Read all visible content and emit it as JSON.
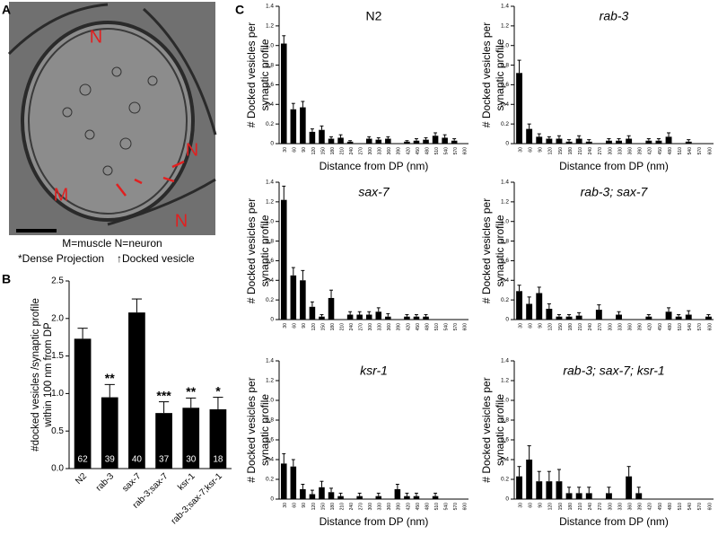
{
  "panel_a": {
    "label": "A",
    "regions": [
      "N",
      "N",
      "M",
      "N"
    ],
    "legend": [
      "M=muscle N=neuron",
      "*Dense Projection",
      "↑Docked vesicle"
    ]
  },
  "chart_data": [
    {
      "type": "bar",
      "panel_label": "B",
      "ylabel": [
        "#docked vesicles /synaptic profile",
        "within 100 nm from DP"
      ],
      "categories": [
        "N2",
        "rab-3",
        "sax-7",
        "rab-3;sax-7",
        "ksr-1",
        "rab-3;sax-7;ksr-1"
      ],
      "values": [
        1.73,
        0.95,
        2.08,
        0.74,
        0.81,
        0.79
      ],
      "errors": [
        0.14,
        0.17,
        0.18,
        0.15,
        0.13,
        0.16
      ],
      "n": [
        62,
        39,
        40,
        37,
        30,
        18
      ],
      "significance": [
        null,
        "**",
        null,
        "***",
        "**",
        "*"
      ],
      "color": "#000000",
      "ylim": [
        0,
        2.5
      ],
      "yticks": [
        {
          "value": 0,
          "label": "0.0"
        },
        0.5,
        {
          "value": 1,
          "label": "1.0"
        },
        1.5,
        {
          "value": 2,
          "label": "2.0"
        },
        2.5
      ]
    },
    {
      "type": "bar",
      "panel_label": "C",
      "title": "N2",
      "italic": false,
      "ylabel": [
        "# Docked vesicles per",
        "synaptic profile"
      ],
      "xlabel": "Distance from DP (nm)",
      "categories": [
        "30",
        "60",
        "90",
        "120",
        "150",
        "180",
        "210",
        "240",
        "270",
        "300",
        "330",
        "360",
        "390",
        "420",
        "450",
        "480",
        "510",
        "540",
        "570",
        "600"
      ],
      "values": [
        1.02,
        0.35,
        0.37,
        0.12,
        0.14,
        0.05,
        0.06,
        0.02,
        0,
        0.05,
        0.04,
        0.05,
        0,
        0.02,
        0.03,
        0.04,
        0.08,
        0.06,
        0.03,
        0
      ],
      "errors": [
        0.08,
        0.06,
        0.06,
        0.03,
        0.04,
        0.02,
        0.03,
        0.01,
        0,
        0.02,
        0.02,
        0.02,
        0,
        0.01,
        0.02,
        0.02,
        0.03,
        0.03,
        0.02,
        0
      ],
      "color": "#000000",
      "ylim": [
        0,
        1.4
      ],
      "yticks": [
        0,
        0.2,
        0.4,
        0.6,
        0.8,
        {
          "value": 1,
          "label": "1.0"
        },
        1.2,
        1.4
      ]
    },
    {
      "type": "bar",
      "title": "rab-3",
      "italic": true,
      "ylabel": [
        "# Docked vesicles per",
        "synaptic profile"
      ],
      "xlabel": "Distance from DP (nm)",
      "categories": [
        "30",
        "60",
        "90",
        "120",
        "150",
        "180",
        "210",
        "240",
        "270",
        "300",
        "330",
        "360",
        "390",
        "420",
        "450",
        "480",
        "510",
        "540",
        "570",
        "600"
      ],
      "values": [
        0.72,
        0.15,
        0.07,
        0.05,
        0.05,
        0.02,
        0.05,
        0.02,
        0,
        0.03,
        0.03,
        0.05,
        0,
        0.03,
        0.03,
        0.07,
        0,
        0.02,
        0,
        0
      ],
      "errors": [
        0.13,
        0.05,
        0.03,
        0.02,
        0.03,
        0.02,
        0.03,
        0.02,
        0,
        0.02,
        0.02,
        0.03,
        0,
        0.02,
        0.02,
        0.04,
        0,
        0.02,
        0,
        0
      ],
      "color": "#000000",
      "ylim": [
        0,
        1.4
      ],
      "yticks": [
        0,
        0.2,
        0.4,
        0.6,
        0.8,
        {
          "value": 1,
          "label": "1.0"
        },
        1.2,
        1.4
      ]
    },
    {
      "type": "bar",
      "title": "sax-7",
      "italic": true,
      "ylabel": [
        "# Docked vesicles per",
        "synaptic profile"
      ],
      "categories": [
        "30",
        "60",
        "90",
        "120",
        "150",
        "180",
        "210",
        "240",
        "270",
        "300",
        "330",
        "360",
        "390",
        "420",
        "450",
        "480",
        "510",
        "540",
        "570",
        "600"
      ],
      "values": [
        1.22,
        0.45,
        0.4,
        0.13,
        0.03,
        0.22,
        0,
        0.05,
        0.05,
        0.05,
        0.08,
        0.03,
        0,
        0.03,
        0.03,
        0.03,
        0,
        0,
        0,
        0
      ],
      "errors": [
        0.14,
        0.08,
        0.1,
        0.05,
        0.02,
        0.08,
        0,
        0.03,
        0.03,
        0.03,
        0.04,
        0.03,
        0,
        0.02,
        0.02,
        0.02,
        0,
        0,
        0,
        0
      ],
      "color": "#000000",
      "ylim": [
        0,
        1.4
      ],
      "yticks": [
        0,
        0.2,
        0.4,
        0.6,
        0.8,
        {
          "value": 1,
          "label": "1.0"
        },
        1.2,
        1.4
      ]
    },
    {
      "type": "bar",
      "title": "rab-3; sax-7",
      "italic": true,
      "ylabel": [
        "# Docked vesicles per",
        "synaptic profile"
      ],
      "categories": [
        "30",
        "60",
        "90",
        "120",
        "150",
        "180",
        "210",
        "240",
        "270",
        "300",
        "330",
        "360",
        "390",
        "420",
        "450",
        "480",
        "510",
        "540",
        "570",
        "600"
      ],
      "values": [
        0.29,
        0.16,
        0.27,
        0.11,
        0.03,
        0.03,
        0.04,
        0,
        0.1,
        0,
        0.05,
        0,
        0,
        0.03,
        0,
        0.08,
        0.03,
        0.05,
        0,
        0.03
      ],
      "errors": [
        0.06,
        0.07,
        0.06,
        0.05,
        0.02,
        0.02,
        0.03,
        0,
        0.05,
        0,
        0.03,
        0,
        0,
        0.02,
        0,
        0.04,
        0.02,
        0.04,
        0,
        0.02
      ],
      "color": "#000000",
      "ylim": [
        0,
        1.4
      ],
      "yticks": [
        0,
        0.2,
        0.4,
        0.6,
        0.8,
        {
          "value": 1,
          "label": "1.0"
        },
        1.2,
        1.4
      ]
    },
    {
      "type": "bar",
      "title": "ksr-1",
      "italic": true,
      "ylabel": [
        "# Docked vesicles per",
        "synaptic profile"
      ],
      "xlabel": "Distance from DP (nm)",
      "categories": [
        "30",
        "60",
        "90",
        "120",
        "150",
        "180",
        "210",
        "240",
        "270",
        "300",
        "330",
        "360",
        "390",
        "420",
        "450",
        "480",
        "510",
        "540",
        "570",
        "600"
      ],
      "values": [
        0.36,
        0.33,
        0.1,
        0.05,
        0.12,
        0.07,
        0.03,
        0,
        0.03,
        0,
        0.03,
        0,
        0.1,
        0.03,
        0.03,
        0,
        0.03,
        0,
        0,
        0
      ],
      "errors": [
        0.1,
        0.07,
        0.05,
        0.04,
        0.06,
        0.04,
        0.03,
        0,
        0.03,
        0,
        0.03,
        0,
        0.05,
        0.03,
        0.03,
        0,
        0.03,
        0,
        0,
        0
      ],
      "color": "#000000",
      "ylim": [
        0,
        1.4
      ],
      "yticks": [
        0,
        0.2,
        0.4,
        0.6,
        0.8,
        {
          "value": 1,
          "label": "1.0"
        },
        1.2,
        1.4
      ]
    },
    {
      "type": "bar",
      "title": "rab-3; sax-7; ksr-1",
      "italic": true,
      "ylabel": [
        "# Docked vesicles per",
        "synaptic profile"
      ],
      "xlabel": "Distance from DP (nm)",
      "categories": [
        "30",
        "60",
        "90",
        "120",
        "150",
        "180",
        "210",
        "240",
        "270",
        "300",
        "330",
        "360",
        "390",
        "420",
        "450",
        "480",
        "510",
        "540",
        "570",
        "600"
      ],
      "values": [
        0.23,
        0.4,
        0.18,
        0.18,
        0.18,
        0.06,
        0.06,
        0.06,
        0,
        0.06,
        0,
        0.23,
        0.06,
        0,
        0,
        0,
        0,
        0,
        0,
        0
      ],
      "errors": [
        0.1,
        0.14,
        0.1,
        0.1,
        0.12,
        0.06,
        0.06,
        0.06,
        0,
        0.06,
        0,
        0.1,
        0.06,
        0,
        0,
        0,
        0,
        0,
        0,
        0
      ],
      "color": "#000000",
      "ylim": [
        0,
        1.4
      ],
      "yticks": [
        0,
        0.2,
        0.4,
        0.6,
        0.8,
        {
          "value": 1,
          "label": "1.0"
        },
        1.2,
        1.4
      ]
    }
  ]
}
